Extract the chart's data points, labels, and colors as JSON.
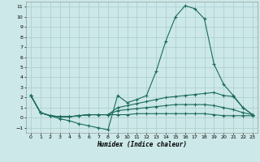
{
  "xlabel": "Humidex (Indice chaleur)",
  "background_color": "#cce8e8",
  "grid_color": "#aacccc",
  "line_color": "#1a6b5a",
  "xlim": [
    -0.5,
    23.5
  ],
  "ylim": [
    -1.5,
    11.5
  ],
  "xticks": [
    0,
    1,
    2,
    3,
    4,
    5,
    6,
    7,
    8,
    9,
    10,
    11,
    12,
    13,
    14,
    15,
    16,
    17,
    18,
    19,
    20,
    21,
    22,
    23
  ],
  "yticks": [
    -1,
    0,
    1,
    2,
    3,
    4,
    5,
    6,
    7,
    8,
    9,
    10,
    11
  ],
  "series1": [
    [
      0,
      2.2
    ],
    [
      1,
      0.5
    ],
    [
      2,
      0.2
    ],
    [
      3,
      -0.1
    ],
    [
      4,
      -0.3
    ],
    [
      5,
      -0.6
    ],
    [
      6,
      -0.8
    ],
    [
      7,
      -1.0
    ],
    [
      8,
      -1.2
    ],
    [
      9,
      2.2
    ],
    [
      10,
      1.5
    ],
    [
      11,
      1.8
    ],
    [
      12,
      2.2
    ],
    [
      13,
      4.6
    ],
    [
      14,
      7.6
    ],
    [
      15,
      10.0
    ],
    [
      16,
      11.1
    ],
    [
      17,
      10.8
    ],
    [
      18,
      9.8
    ],
    [
      19,
      5.3
    ],
    [
      20,
      3.3
    ],
    [
      21,
      2.2
    ],
    [
      22,
      1.0
    ],
    [
      23,
      0.3
    ]
  ],
  "series2": [
    [
      0,
      2.2
    ],
    [
      1,
      0.5
    ],
    [
      2,
      0.2
    ],
    [
      3,
      0.1
    ],
    [
      4,
      0.1
    ],
    [
      5,
      0.2
    ],
    [
      6,
      0.3
    ],
    [
      7,
      0.3
    ],
    [
      8,
      0.3
    ],
    [
      9,
      1.0
    ],
    [
      10,
      1.2
    ],
    [
      11,
      1.4
    ],
    [
      12,
      1.6
    ],
    [
      13,
      1.8
    ],
    [
      14,
      2.0
    ],
    [
      15,
      2.1
    ],
    [
      16,
      2.2
    ],
    [
      17,
      2.3
    ],
    [
      18,
      2.4
    ],
    [
      19,
      2.5
    ],
    [
      20,
      2.2
    ],
    [
      21,
      2.1
    ],
    [
      22,
      1.0
    ],
    [
      23,
      0.3
    ]
  ],
  "series3": [
    [
      0,
      2.2
    ],
    [
      1,
      0.5
    ],
    [
      2,
      0.2
    ],
    [
      3,
      0.1
    ],
    [
      4,
      0.1
    ],
    [
      5,
      0.2
    ],
    [
      6,
      0.3
    ],
    [
      7,
      0.3
    ],
    [
      8,
      0.3
    ],
    [
      9,
      0.7
    ],
    [
      10,
      0.8
    ],
    [
      11,
      0.9
    ],
    [
      12,
      1.0
    ],
    [
      13,
      1.1
    ],
    [
      14,
      1.2
    ],
    [
      15,
      1.3
    ],
    [
      16,
      1.3
    ],
    [
      17,
      1.3
    ],
    [
      18,
      1.3
    ],
    [
      19,
      1.2
    ],
    [
      20,
      1.0
    ],
    [
      21,
      0.8
    ],
    [
      22,
      0.5
    ],
    [
      23,
      0.3
    ]
  ],
  "series4": [
    [
      0,
      2.2
    ],
    [
      1,
      0.5
    ],
    [
      2,
      0.2
    ],
    [
      3,
      0.1
    ],
    [
      4,
      0.1
    ],
    [
      5,
      0.2
    ],
    [
      6,
      0.3
    ],
    [
      7,
      0.3
    ],
    [
      8,
      0.3
    ],
    [
      9,
      0.3
    ],
    [
      10,
      0.3
    ],
    [
      11,
      0.4
    ],
    [
      12,
      0.4
    ],
    [
      13,
      0.4
    ],
    [
      14,
      0.4
    ],
    [
      15,
      0.4
    ],
    [
      16,
      0.4
    ],
    [
      17,
      0.4
    ],
    [
      18,
      0.4
    ],
    [
      19,
      0.3
    ],
    [
      20,
      0.2
    ],
    [
      21,
      0.2
    ],
    [
      22,
      0.2
    ],
    [
      23,
      0.2
    ]
  ]
}
